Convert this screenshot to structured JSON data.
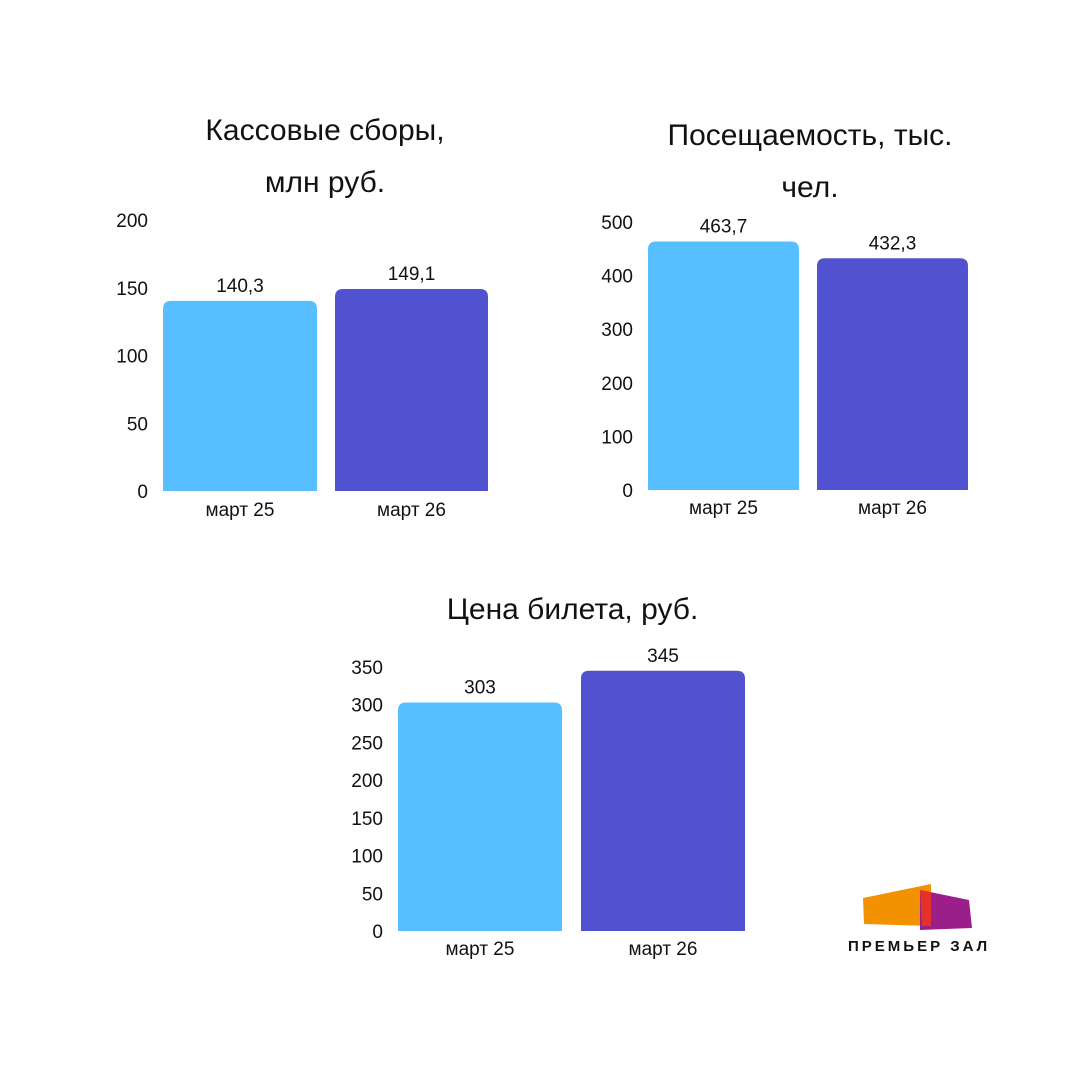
{
  "brand": {
    "name": "ПРЕМЬЕР ЗАЛ",
    "icon": "premier-zal-logo-icon",
    "colors": {
      "orange": "#F39200",
      "purple": "#9B1F8A",
      "red": "#E4322B"
    }
  },
  "colors": {
    "bar_mar25": "#57BEFF",
    "bar_mar26": "#5152CF"
  },
  "chart_data": [
    {
      "type": "bar",
      "title": "Кассовые сборы, млн руб.",
      "title_lines": [
        "Кассовые сборы,",
        "млн руб."
      ],
      "categories": [
        "март 25",
        "март 26"
      ],
      "values": [
        140.3,
        149.1
      ],
      "value_labels": [
        "140,3",
        "149,1"
      ],
      "yticks": [
        0,
        50,
        100,
        150,
        200
      ],
      "ylim": [
        0,
        200
      ],
      "xlabel": "",
      "ylabel": "",
      "grid": false,
      "legend": "none"
    },
    {
      "type": "bar",
      "title": "Посещаемость, тыс. чел.",
      "title_lines": [
        "Посещаемость, тыс.",
        "чел."
      ],
      "categories": [
        "март 25",
        "март 26"
      ],
      "values": [
        463.7,
        432.3
      ],
      "value_labels": [
        "463,7",
        "432,3"
      ],
      "yticks": [
        0,
        100,
        200,
        300,
        400,
        500
      ],
      "ylim": [
        0,
        500
      ],
      "xlabel": "",
      "ylabel": "",
      "grid": false,
      "legend": "none"
    },
    {
      "type": "bar",
      "title": "Цена билета, руб.",
      "title_lines": [
        "Цена билета, руб."
      ],
      "categories": [
        "март 25",
        "март 26"
      ],
      "values": [
        303,
        345
      ],
      "value_labels": [
        "303",
        "345"
      ],
      "yticks": [
        0,
        50,
        100,
        150,
        200,
        250,
        300,
        350
      ],
      "ylim": [
        0,
        350
      ],
      "xlabel": "",
      "ylabel": "",
      "grid": false,
      "legend": "none"
    }
  ]
}
